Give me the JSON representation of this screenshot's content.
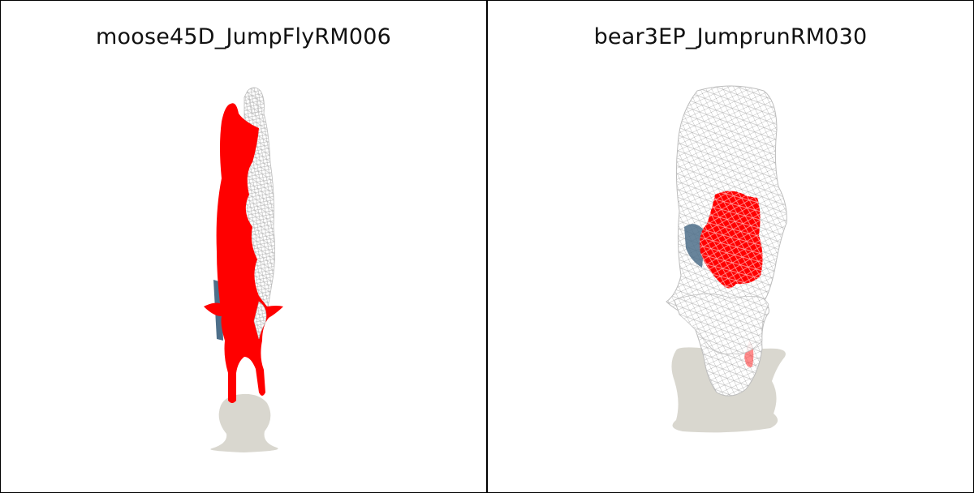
{
  "panels": [
    {
      "title": "moose45D_JumpFlyRM006"
    },
    {
      "title": "bear3EP_JumprunRM030"
    }
  ],
  "colors": {
    "highlight": "#ff0000",
    "mesh": "#c8c8c8",
    "shadow": "#d9d7cf",
    "blue": "#4d6f8a",
    "border": "#000000"
  }
}
